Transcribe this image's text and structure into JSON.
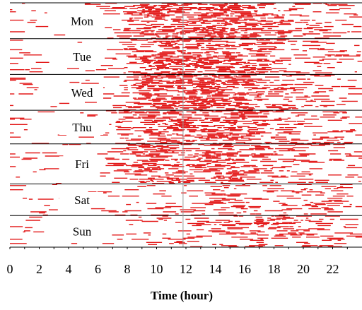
{
  "chart_data": {
    "type": "scatter",
    "title": "",
    "xlabel": "Time (hour)",
    "ylabel": "",
    "xlim": [
      0,
      24
    ],
    "xticks": [
      "0",
      "2",
      "4",
      "6",
      "8",
      "10",
      "12",
      "14",
      "16",
      "18",
      "20",
      "22"
    ],
    "reference_line_hour": 11.8,
    "mark_color": "#e00000",
    "grid": false,
    "legend": "none",
    "days": [
      {
        "label": "Mon",
        "rows": 17,
        "profile": [
          0.14,
          0.1,
          0.06,
          0.05,
          0.05,
          0.06,
          0.08,
          0.12,
          0.45,
          0.62,
          0.7,
          0.72,
          0.7,
          0.74,
          0.76,
          0.72,
          0.7,
          0.6,
          0.5,
          0.42,
          0.36,
          0.3,
          0.25,
          0.2
        ]
      },
      {
        "label": "Tue",
        "rows": 17,
        "profile": [
          0.14,
          0.1,
          0.06,
          0.05,
          0.05,
          0.06,
          0.08,
          0.12,
          0.42,
          0.58,
          0.65,
          0.68,
          0.66,
          0.7,
          0.72,
          0.7,
          0.66,
          0.56,
          0.46,
          0.4,
          0.34,
          0.28,
          0.24,
          0.2
        ]
      },
      {
        "label": "Wed",
        "rows": 17,
        "profile": [
          0.12,
          0.09,
          0.06,
          0.05,
          0.05,
          0.06,
          0.08,
          0.12,
          0.45,
          0.66,
          0.72,
          0.72,
          0.68,
          0.72,
          0.74,
          0.72,
          0.68,
          0.58,
          0.5,
          0.42,
          0.36,
          0.3,
          0.25,
          0.2
        ]
      },
      {
        "label": "Thu",
        "rows": 16,
        "profile": [
          0.14,
          0.1,
          0.06,
          0.05,
          0.05,
          0.06,
          0.08,
          0.12,
          0.4,
          0.58,
          0.64,
          0.64,
          0.62,
          0.66,
          0.7,
          0.68,
          0.64,
          0.55,
          0.46,
          0.4,
          0.34,
          0.28,
          0.24,
          0.2
        ]
      },
      {
        "label": "Fri",
        "rows": 19,
        "profile": [
          0.14,
          0.1,
          0.07,
          0.05,
          0.05,
          0.06,
          0.08,
          0.12,
          0.38,
          0.55,
          0.6,
          0.6,
          0.58,
          0.62,
          0.65,
          0.62,
          0.58,
          0.48,
          0.4,
          0.35,
          0.3,
          0.26,
          0.22,
          0.2
        ]
      },
      {
        "label": "Sat",
        "rows": 15,
        "profile": [
          0.1,
          0.08,
          0.06,
          0.05,
          0.04,
          0.04,
          0.05,
          0.06,
          0.08,
          0.12,
          0.16,
          0.2,
          0.24,
          0.3,
          0.32,
          0.32,
          0.3,
          0.28,
          0.26,
          0.24,
          0.26,
          0.3,
          0.26,
          0.2
        ]
      },
      {
        "label": "Sun",
        "rows": 15,
        "profile": [
          0.1,
          0.08,
          0.06,
          0.05,
          0.04,
          0.04,
          0.05,
          0.06,
          0.1,
          0.14,
          0.18,
          0.22,
          0.3,
          0.36,
          0.4,
          0.4,
          0.38,
          0.36,
          0.34,
          0.32,
          0.36,
          0.4,
          0.3,
          0.22
        ]
      }
    ]
  }
}
